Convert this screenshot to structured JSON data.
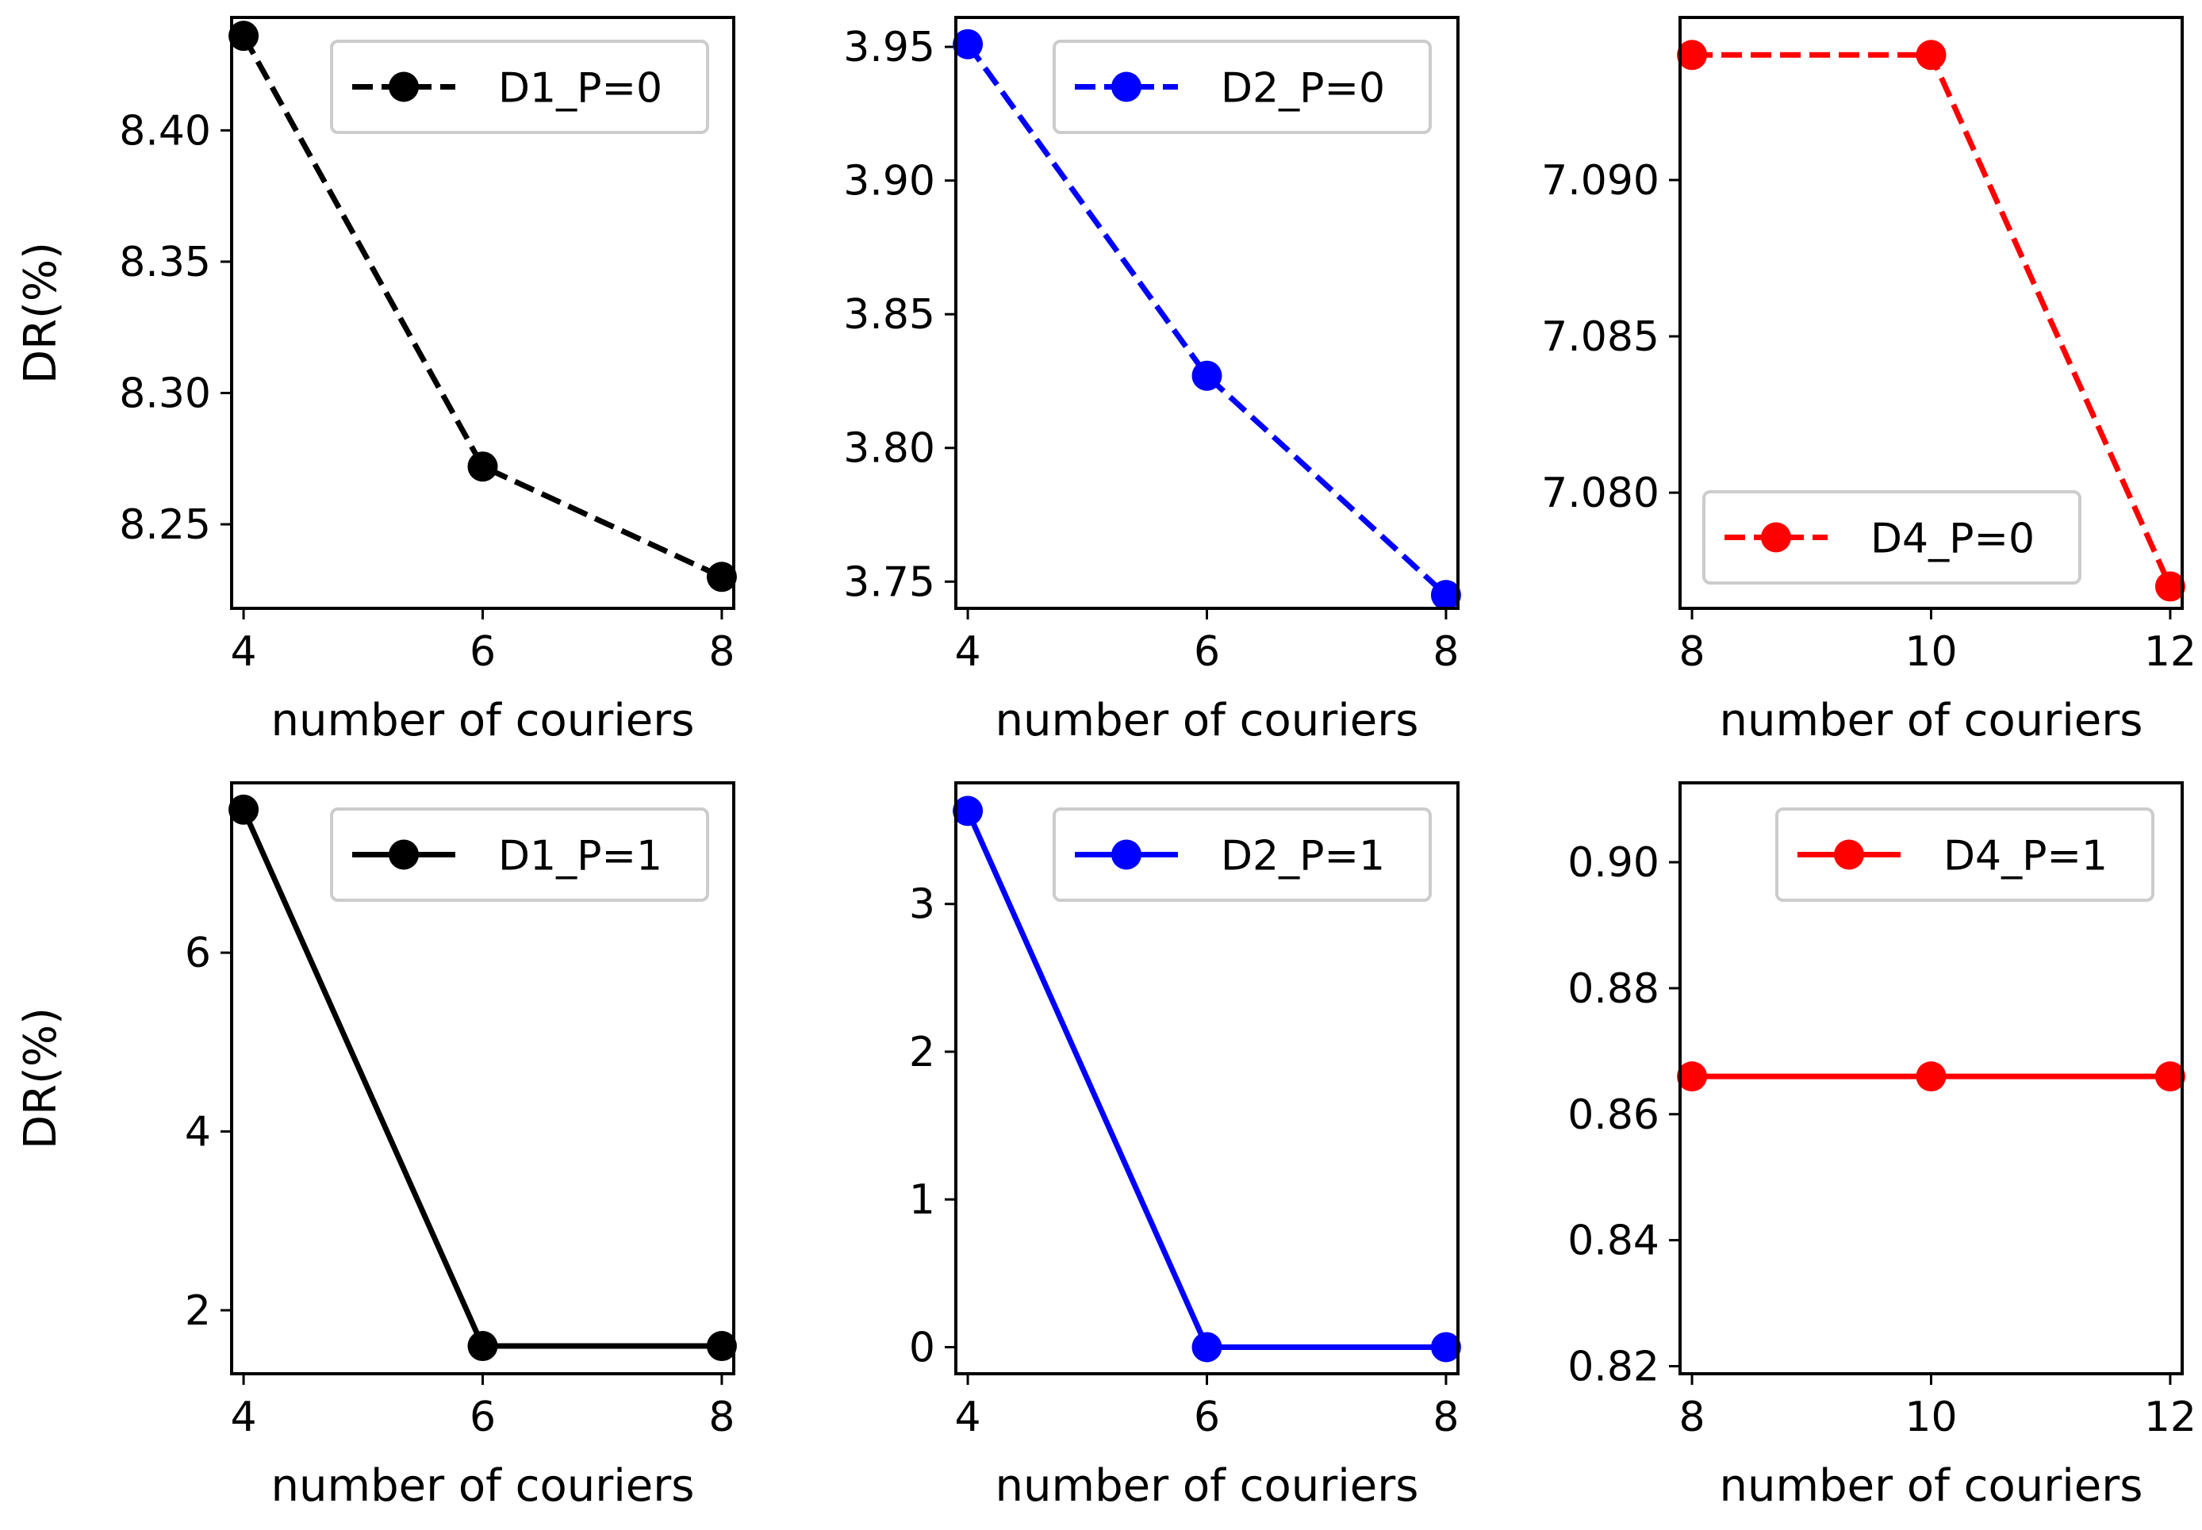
{
  "chart_data": [
    {
      "type": "line",
      "x": [
        4,
        6,
        8
      ],
      "xticks": [
        "4",
        "6",
        "8"
      ],
      "xlim": [
        3.9,
        8.1
      ],
      "ylim": [
        8.218,
        8.443
      ],
      "yticks": [
        8.25,
        8.3,
        8.35,
        8.4
      ],
      "ytick_labels": [
        "8.25",
        "8.30",
        "8.35",
        "8.40"
      ],
      "xlabel": "number of couriers",
      "ylabel": "DR(%)",
      "legend_position": "top-right",
      "series": [
        {
          "name": "D1_P=0",
          "color": "#000000",
          "linestyle": "dashed",
          "values": [
            8.436,
            8.272,
            8.23
          ]
        }
      ]
    },
    {
      "type": "line",
      "x": [
        4,
        6,
        8
      ],
      "xticks": [
        "4",
        "6",
        "8"
      ],
      "xlim": [
        3.9,
        8.1
      ],
      "ylim": [
        3.74,
        3.961
      ],
      "yticks": [
        3.75,
        3.8,
        3.85,
        3.9,
        3.95
      ],
      "ytick_labels": [
        "3.75",
        "3.80",
        "3.85",
        "3.90",
        "3.95"
      ],
      "xlabel": "number of couriers",
      "ylabel": "",
      "legend_position": "top-right",
      "series": [
        {
          "name": "D2_P=0",
          "color": "#0000ff",
          "linestyle": "dashed",
          "values": [
            3.951,
            3.827,
            3.745
          ]
        }
      ]
    },
    {
      "type": "line",
      "x": [
        8,
        10,
        12
      ],
      "xticks": [
        "8",
        "10",
        "12"
      ],
      "xlim": [
        7.9,
        12.1
      ],
      "ylim": [
        7.0763,
        7.0952
      ],
      "yticks": [
        7.08,
        7.085,
        7.09
      ],
      "ytick_labels": [
        "7.080",
        "7.085",
        "7.090"
      ],
      "xlabel": "number of couriers",
      "ylabel": "",
      "legend_position": "lower-right",
      "series": [
        {
          "name": "D4_P=0",
          "color": "#ff0000",
          "linestyle": "dashed",
          "values": [
            7.094,
            7.094,
            7.077
          ]
        }
      ]
    },
    {
      "type": "line",
      "x": [
        4,
        6,
        8
      ],
      "xticks": [
        "4",
        "6",
        "8"
      ],
      "xlim": [
        3.9,
        8.1
      ],
      "ylim": [
        1.29,
        7.9
      ],
      "yticks": [
        2,
        4,
        6
      ],
      "ytick_labels": [
        "2",
        "4",
        "6"
      ],
      "xlabel": "number of couriers",
      "ylabel": "DR(%)",
      "legend_position": "top-right",
      "series": [
        {
          "name": "D1_P=1",
          "color": "#000000",
          "linestyle": "solid",
          "values": [
            7.6,
            1.6,
            1.6
          ]
        }
      ]
    },
    {
      "type": "line",
      "x": [
        4,
        6,
        8
      ],
      "xticks": [
        "4",
        "6",
        "8"
      ],
      "xlim": [
        3.9,
        8.1
      ],
      "ylim": [
        -0.18,
        3.82
      ],
      "yticks": [
        0,
        1,
        2,
        3
      ],
      "ytick_labels": [
        "0",
        "1",
        "2",
        "3"
      ],
      "xlabel": "number of couriers",
      "ylabel": "",
      "legend_position": "top-right",
      "series": [
        {
          "name": "D2_P=1",
          "color": "#0000ff",
          "linestyle": "solid",
          "values": [
            3.63,
            0.0,
            0.0
          ]
        }
      ]
    },
    {
      "type": "line",
      "x": [
        8,
        10,
        12
      ],
      "xticks": [
        "8",
        "10",
        "12"
      ],
      "xlim": [
        7.9,
        12.1
      ],
      "ylim": [
        0.8188,
        0.9126
      ],
      "yticks": [
        0.82,
        0.84,
        0.86,
        0.88,
        0.9
      ],
      "ytick_labels": [
        "0.82",
        "0.84",
        "0.86",
        "0.88",
        "0.90"
      ],
      "xlabel": "number of couriers",
      "ylabel": "",
      "legend_position": "top-right",
      "series": [
        {
          "name": "D4_P=1",
          "color": "#ff0000",
          "linestyle": "solid",
          "values": [
            0.866,
            0.866,
            0.866
          ]
        }
      ]
    }
  ]
}
